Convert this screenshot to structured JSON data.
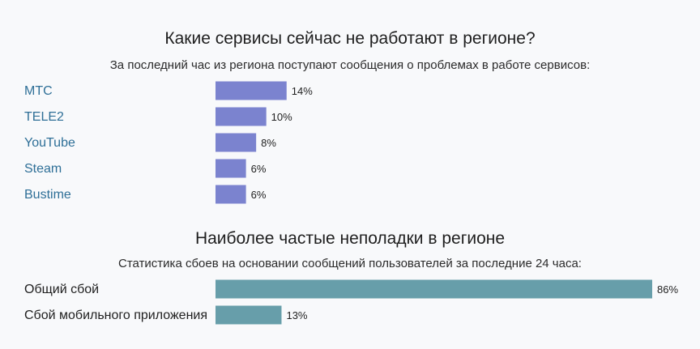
{
  "chart_data": [
    {
      "type": "bar",
      "orientation": "horizontal",
      "title": "Какие сервисы сейчас не работают в регионе?",
      "subtitle": "За последний час из региона поступают сообщения о проблемах в работе сервисов:",
      "categories": [
        "МТС",
        "TELE2",
        "YouTube",
        "Steam",
        "Bustime"
      ],
      "values": [
        14,
        10,
        8,
        6,
        6
      ],
      "value_labels": [
        "14%",
        "10%",
        "8%",
        "6%",
        "6%"
      ],
      "unit": "%",
      "bar_color": "#7b83cf",
      "label_color": "#2e6f97",
      "xlim": [
        0,
        100
      ],
      "grid": false
    },
    {
      "type": "bar",
      "orientation": "horizontal",
      "title": "Наиболее частые неполадки в регионе",
      "subtitle": "Статистика сбоев на основании сообщений пользователей за последние 24 часа:",
      "categories": [
        "Общий сбой",
        "Сбой мобильного приложения"
      ],
      "values": [
        86,
        13
      ],
      "value_labels": [
        "86%",
        "13%"
      ],
      "unit": "%",
      "bar_color": "#679eaa",
      "label_color": "#1f1f1f",
      "xlim": [
        0,
        100
      ],
      "grid": false
    }
  ]
}
